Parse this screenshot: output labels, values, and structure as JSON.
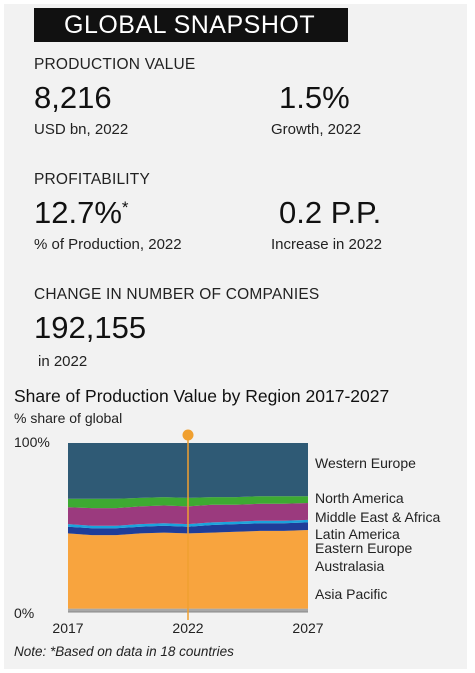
{
  "title": "GLOBAL SNAPSHOT",
  "production": {
    "label": "PRODUCTION VALUE",
    "value": "8,216",
    "unit": "USD bn, 2022",
    "growth_value": "1.5%",
    "growth_unit": "Growth, 2022"
  },
  "profitability": {
    "label": "PROFITABILITY",
    "value": "12.7%",
    "marker": "*",
    "unit": "% of Production, 2022",
    "change_value": "0.2 P.P.",
    "change_unit": "Increase in 2022"
  },
  "companies": {
    "label": "CHANGE IN NUMBER OF COMPANIES",
    "value": "192,155",
    "unit": "in 2022"
  },
  "note": "Note: *Based on data in 18 countries",
  "colors": {
    "western_europe": "#2f5a75",
    "north_america": "#3daa32",
    "middle_east_africa": "#9b3a7e",
    "latin_america": "#1aa3dc",
    "eastern_europe": "#1f3d99",
    "australasia": "#f8a43e",
    "asia_pacific": "#a8a8a8",
    "marker": "#f0a030"
  },
  "chart_data": {
    "type": "area",
    "stacked": true,
    "title": "Share of Production Value by Region 2017-2027",
    "ylabel": "% share of global",
    "x": [
      2017,
      2018,
      2019,
      2020,
      2021,
      2022,
      2023,
      2024,
      2025,
      2026,
      2027
    ],
    "x_tick_labels": [
      "2017",
      "2022",
      "2027"
    ],
    "y_tick_labels": [
      "100%",
      "0%"
    ],
    "ylim": [
      0,
      100
    ],
    "highlight_x": 2022,
    "series": [
      {
        "name": "Asia Pacific",
        "values": [
          2,
          2,
          2,
          2,
          2,
          2,
          2,
          2,
          2,
          2,
          2
        ]
      },
      {
        "name": "Australasia",
        "values": [
          44.5,
          43.5,
          43.5,
          44.5,
          45,
          44.5,
          45,
          45.5,
          46,
          46,
          46.5
        ]
      },
      {
        "name": "Eastern Europe",
        "values": [
          4,
          4,
          4,
          4,
          4,
          4,
          4.5,
          4.5,
          4.5,
          4.5,
          4.5
        ]
      },
      {
        "name": "Latin America",
        "values": [
          1.5,
          1.5,
          1.5,
          1.5,
          1.5,
          1.5,
          1.5,
          1.5,
          1.5,
          1.5,
          1.5
        ]
      },
      {
        "name": "Middle East & Africa",
        "values": [
          10,
          10.5,
          10.5,
          10.5,
          10.5,
          10.5,
          10.5,
          10,
          10,
          10,
          10
        ]
      },
      {
        "name": "North America",
        "values": [
          5,
          5.5,
          5.5,
          5,
          5,
          5,
          4.5,
          4.5,
          4.5,
          4.5,
          4
        ]
      },
      {
        "name": "Western Europe",
        "values": [
          33,
          33,
          33,
          32.5,
          32,
          32.5,
          32,
          32,
          31.5,
          31.5,
          31.5
        ]
      }
    ]
  }
}
